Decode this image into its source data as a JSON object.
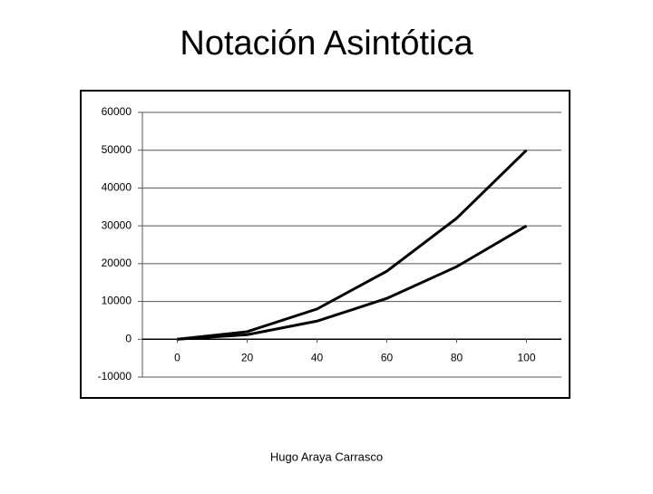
{
  "title": "Notación Asintótica",
  "footer": "Hugo Araya Carrasco",
  "chart_data": {
    "type": "line",
    "x": [
      0,
      20,
      40,
      60,
      80,
      100
    ],
    "series": [
      {
        "color": "#000000",
        "values": [
          0,
          2000,
          8000,
          18000,
          32000,
          50000
        ]
      },
      {
        "color": "#000000",
        "values": [
          0,
          1200,
          4800,
          10800,
          19200,
          30000
        ]
      }
    ],
    "xlim": [
      -10,
      110
    ],
    "xticks": [
      0,
      20,
      40,
      60,
      80,
      100
    ],
    "ylim": [
      -10000,
      60000
    ],
    "yticks": [
      -10000,
      0,
      10000,
      20000,
      30000,
      40000,
      50000,
      60000
    ],
    "grid": true
  }
}
